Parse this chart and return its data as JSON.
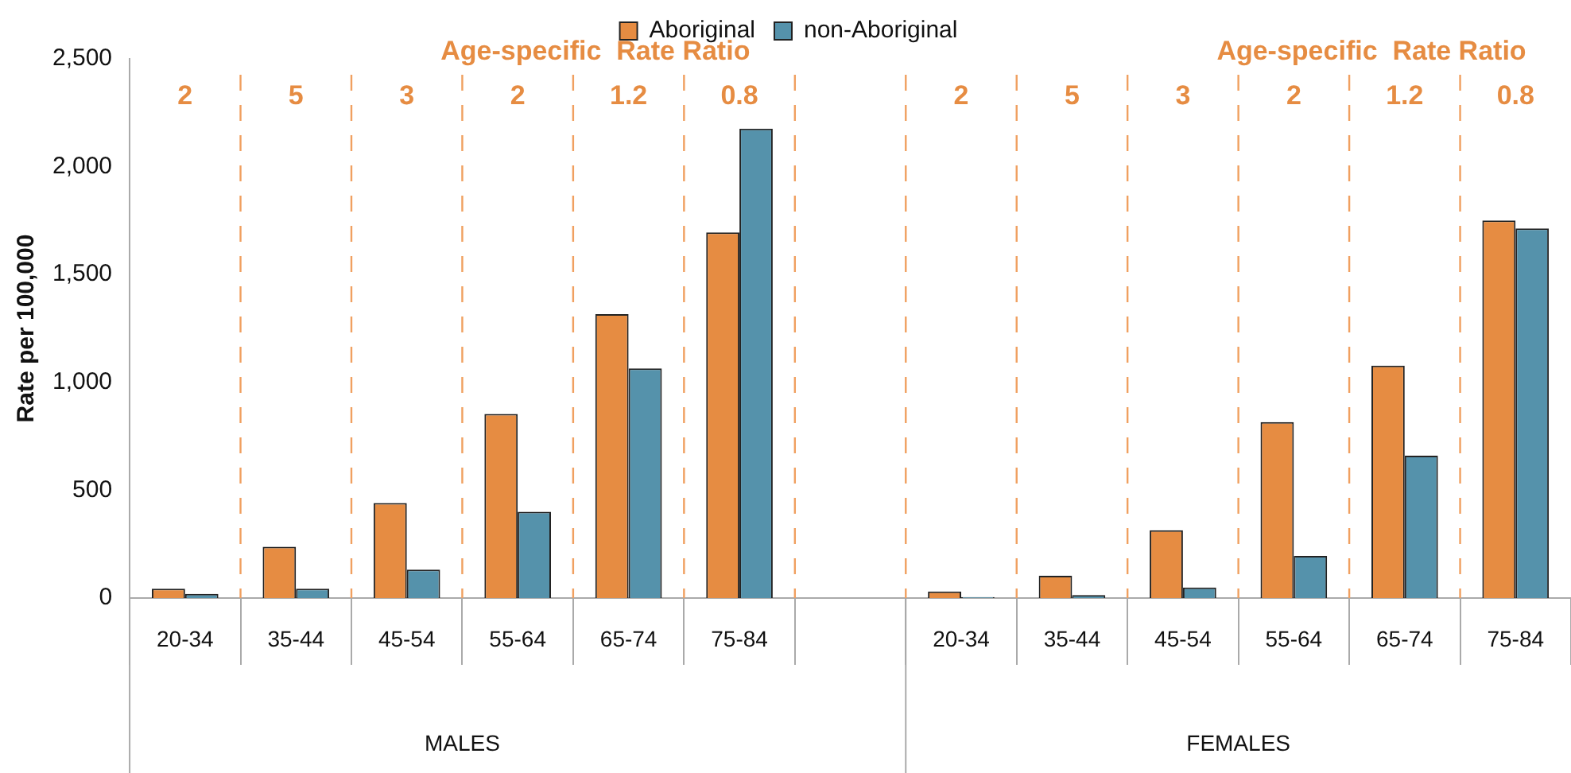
{
  "chart_data": {
    "type": "bar",
    "ylabel": "Rate per 100,000",
    "categories": [
      "20-34",
      "35-44",
      "45-54",
      "55-64",
      "65-74",
      "75-84",
      null,
      "20-34",
      "35-44",
      "45-54",
      "55-64",
      "65-74",
      "75-84"
    ],
    "series": [
      {
        "name": "Aboriginal",
        "color": "#e68c42",
        "values": [
          43,
          238,
          441,
          854,
          1316,
          1695,
          null,
          30,
          103,
          314,
          816,
          1078,
          1751
        ]
      },
      {
        "name": "non-Aboriginal",
        "color": "#5592ab",
        "values": [
          19,
          43,
          132,
          400,
          1065,
          2176,
          null,
          5,
          14,
          49,
          195,
          660,
          1714
        ]
      }
    ],
    "ylim": [
      0,
      2500
    ],
    "yticks": [
      0,
      500,
      {
        "value": 1000,
        "label": "1,000"
      },
      {
        "value": 1500,
        "label": "1,500"
      },
      {
        "value": 2000,
        "label": "2,000"
      },
      {
        "value": 2500,
        "label": "2,500"
      }
    ],
    "legend": "top",
    "annotations": [
      "Age-specific  Rate Ratio",
      "2",
      "5",
      "3",
      "2",
      "1.2",
      "0.8",
      "Age-specific  Rate Ratio",
      "2",
      "5",
      "3",
      "2",
      "1.2",
      "0.8",
      "MALES",
      "FEMALES"
    ]
  }
}
